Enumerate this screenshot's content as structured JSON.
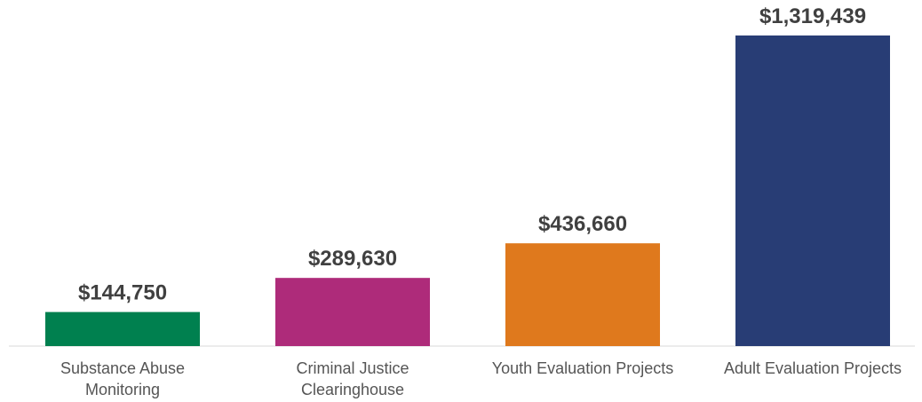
{
  "chart_data": {
    "type": "bar",
    "categories": [
      [
        "Substance Abuse",
        "Monitoring"
      ],
      [
        "Criminal Justice",
        "Clearinghouse"
      ],
      [
        "Youth Evaluation Projects"
      ],
      [
        "Adult Evaluation Projects"
      ]
    ],
    "values": [
      144750,
      289630,
      436660,
      1319439
    ],
    "value_labels": [
      "$144,750",
      "$289,630",
      "$436,660",
      "$1,319,439"
    ],
    "colors": [
      "#00804F",
      "#AE2B7A",
      "#DF791D",
      "#283D75"
    ],
    "title": "",
    "xlabel": "",
    "ylabel": "",
    "ylim": [
      0,
      1319439
    ],
    "grid": false,
    "legend": "none"
  }
}
